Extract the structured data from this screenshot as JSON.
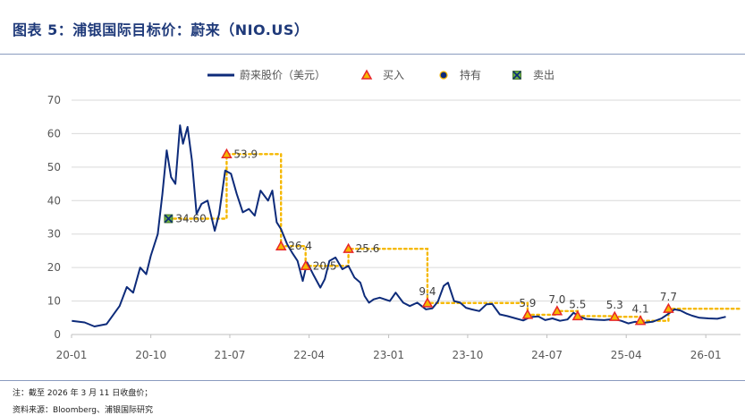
{
  "header": {
    "title": "图表 5：浦银国际目标价：蔚来（NIO.US）"
  },
  "footer": {
    "note": "注：截至 2026 年 3 月 11 日收盘价；",
    "source": "资料来源：Bloomberg、浦银国际研究"
  },
  "colors": {
    "title": "#1f3a7a",
    "price_line": "#0d2b7a",
    "target_line": "#f5b800",
    "buy_marker": "#e8262a",
    "buy_marker_fill": "#f5b800",
    "hold_marker": "#0d2b7a",
    "sell_marker": "#6db33f"
  },
  "chart_data": {
    "type": "line",
    "legend_position": "top",
    "grid": true,
    "x_ticks": [
      "20-01",
      "20-10",
      "21-07",
      "22-04",
      "23-01",
      "23-10",
      "24-07",
      "25-04",
      "26-01"
    ],
    "x_tick_values": [
      "2020-01",
      "2020-10",
      "2021-07",
      "2022-04",
      "2023-01",
      "2023-10",
      "2024-07",
      "2025-04",
      "2026-01"
    ],
    "xlim": [
      "2020-01",
      "2026-05"
    ],
    "y_ticks": [
      0,
      10,
      20,
      30,
      40,
      50,
      60,
      70
    ],
    "ylim": [
      0,
      70
    ],
    "legend": [
      {
        "key": "price",
        "label": "蔚来股价（美元）"
      },
      {
        "key": "buy",
        "label": "买入"
      },
      {
        "key": "hold",
        "label": "持有"
      },
      {
        "key": "sell",
        "label": "卖出"
      }
    ],
    "series": [
      {
        "name": "蔚来股价（美元）",
        "points": [
          [
            "2020-01-02",
            4.1
          ],
          [
            "2020-02-15",
            3.6
          ],
          [
            "2020-03-20",
            2.4
          ],
          [
            "2020-05-01",
            3.1
          ],
          [
            "2020-06-15",
            8.5
          ],
          [
            "2020-07-10",
            14.2
          ],
          [
            "2020-08-01",
            12.5
          ],
          [
            "2020-08-25",
            20.0
          ],
          [
            "2020-09-15",
            18.0
          ],
          [
            "2020-10-01",
            23.5
          ],
          [
            "2020-10-25",
            30.0
          ],
          [
            "2020-11-10",
            42.0
          ],
          [
            "2020-11-25",
            55.0
          ],
          [
            "2020-12-10",
            47.0
          ],
          [
            "2020-12-25",
            45.0
          ],
          [
            "2021-01-10",
            62.5
          ],
          [
            "2021-01-20",
            57.0
          ],
          [
            "2021-02-05",
            62.0
          ],
          [
            "2021-02-20",
            52.0
          ],
          [
            "2021-03-08",
            36.0
          ],
          [
            "2021-03-25",
            39.0
          ],
          [
            "2021-04-15",
            40.0
          ],
          [
            "2021-05-10",
            31.0
          ],
          [
            "2021-05-25",
            36.0
          ],
          [
            "2021-06-15",
            49.0
          ],
          [
            "2021-07-05",
            48.0
          ],
          [
            "2021-07-25",
            42.0
          ],
          [
            "2021-08-15",
            36.5
          ],
          [
            "2021-09-05",
            37.5
          ],
          [
            "2021-09-25",
            35.5
          ],
          [
            "2021-10-15",
            43.0
          ],
          [
            "2021-11-10",
            40.0
          ],
          [
            "2021-11-25",
            43.0
          ],
          [
            "2021-12-10",
            33.5
          ],
          [
            "2021-12-25",
            31.5
          ],
          [
            "2022-01-15",
            27.0
          ],
          [
            "2022-02-01",
            24.5
          ],
          [
            "2022-02-20",
            22.0
          ],
          [
            "2022-03-10",
            16.0
          ],
          [
            "2022-03-25",
            21.5
          ],
          [
            "2022-04-15",
            18.0
          ],
          [
            "2022-05-10",
            14.0
          ],
          [
            "2022-05-25",
            16.5
          ],
          [
            "2022-06-10",
            22.0
          ],
          [
            "2022-07-01",
            23.0
          ],
          [
            "2022-07-25",
            19.5
          ],
          [
            "2022-08-15",
            20.5
          ],
          [
            "2022-09-05",
            17.0
          ],
          [
            "2022-09-25",
            15.5
          ],
          [
            "2022-10-10",
            11.5
          ],
          [
            "2022-10-25",
            9.5
          ],
          [
            "2022-11-10",
            10.5
          ],
          [
            "2022-12-01",
            11.0
          ],
          [
            "2023-01-05",
            10.0
          ],
          [
            "2023-01-25",
            12.5
          ],
          [
            "2023-02-20",
            9.5
          ],
          [
            "2023-03-15",
            8.5
          ],
          [
            "2023-04-10",
            9.5
          ],
          [
            "2023-05-10",
            7.5
          ],
          [
            "2023-06-01",
            7.8
          ],
          [
            "2023-06-20",
            9.8
          ],
          [
            "2023-07-10",
            14.5
          ],
          [
            "2023-07-25",
            15.5
          ],
          [
            "2023-08-15",
            10.0
          ],
          [
            "2023-09-05",
            9.5
          ],
          [
            "2023-09-25",
            8.0
          ],
          [
            "2023-10-15",
            7.5
          ],
          [
            "2023-11-10",
            7.0
          ],
          [
            "2023-12-05",
            9.0
          ],
          [
            "2023-12-25",
            9.1
          ],
          [
            "2024-01-20",
            6.0
          ],
          [
            "2024-02-15",
            5.5
          ],
          [
            "2024-03-15",
            4.8
          ],
          [
            "2024-04-10",
            4.2
          ],
          [
            "2024-05-05",
            5.2
          ],
          [
            "2024-06-01",
            5.4
          ],
          [
            "2024-06-25",
            4.3
          ],
          [
            "2024-07-20",
            4.8
          ],
          [
            "2024-08-15",
            4.1
          ],
          [
            "2024-09-10",
            4.5
          ],
          [
            "2024-10-01",
            6.5
          ],
          [
            "2024-10-20",
            5.4
          ],
          [
            "2024-11-15",
            4.6
          ],
          [
            "2024-12-20",
            4.4
          ],
          [
            "2025-01-15",
            4.3
          ],
          [
            "2025-02-15",
            4.6
          ],
          [
            "2025-03-15",
            4.1
          ],
          [
            "2025-04-08",
            3.3
          ],
          [
            "2025-05-01",
            3.8
          ],
          [
            "2025-06-01",
            3.5
          ],
          [
            "2025-07-01",
            3.8
          ],
          [
            "2025-08-01",
            4.8
          ],
          [
            "2025-08-25",
            6.2
          ],
          [
            "2025-09-15",
            7.5
          ],
          [
            "2025-10-05",
            7.2
          ],
          [
            "2025-10-25",
            6.3
          ],
          [
            "2025-11-15",
            5.6
          ],
          [
            "2025-12-10",
            5.0
          ],
          [
            "2026-01-10",
            4.8
          ],
          [
            "2026-02-10",
            4.7
          ],
          [
            "2026-03-11",
            5.3
          ]
        ]
      }
    ],
    "target_price_path": [
      [
        "2020-12-01",
        34.6
      ],
      [
        "2021-06-20",
        34.6
      ],
      [
        "2021-06-20",
        53.9
      ],
      [
        "2021-12-25",
        53.9
      ],
      [
        "2021-12-25",
        26.4
      ],
      [
        "2022-03-20",
        26.4
      ],
      [
        "2022-03-20",
        20.5
      ],
      [
        "2022-08-15",
        20.5
      ],
      [
        "2022-08-15",
        25.6
      ],
      [
        "2023-05-15",
        25.6
      ],
      [
        "2023-05-15",
        9.4
      ],
      [
        "2024-04-25",
        9.4
      ],
      [
        "2024-04-25",
        5.9
      ],
      [
        "2024-08-05",
        5.9
      ],
      [
        "2024-08-05",
        7.0
      ],
      [
        "2024-10-15",
        7.0
      ],
      [
        "2024-10-15",
        5.5
      ],
      [
        "2025-02-20",
        5.5
      ],
      [
        "2025-02-20",
        5.3
      ],
      [
        "2025-05-20",
        5.3
      ],
      [
        "2025-05-20",
        4.1
      ],
      [
        "2025-08-25",
        4.1
      ],
      [
        "2025-08-25",
        7.7
      ],
      [
        "2026-05-01",
        7.7
      ]
    ],
    "ratings": [
      {
        "rating": "sell",
        "date": "2020-12-01",
        "price": 34.6,
        "label": "34.60"
      },
      {
        "rating": "buy",
        "date": "2021-06-20",
        "price": 53.9,
        "label": "53.9"
      },
      {
        "rating": "buy",
        "date": "2021-12-25",
        "price": 26.4,
        "label": "26.4"
      },
      {
        "rating": "buy",
        "date": "2022-03-20",
        "price": 20.5,
        "label": "20.5"
      },
      {
        "rating": "buy",
        "date": "2022-08-15",
        "price": 25.6,
        "label": "25.6"
      },
      {
        "rating": "buy",
        "date": "2023-05-15",
        "price": 9.4,
        "label": "9.4"
      },
      {
        "rating": "buy",
        "date": "2024-04-25",
        "price": 5.9,
        "label": "5.9"
      },
      {
        "rating": "buy",
        "date": "2024-08-05",
        "price": 7.0,
        "label": "7.0"
      },
      {
        "rating": "buy",
        "date": "2024-10-15",
        "price": 5.5,
        "label": "5.5"
      },
      {
        "rating": "buy",
        "date": "2025-02-20",
        "price": 5.3,
        "label": "5.3"
      },
      {
        "rating": "buy",
        "date": "2025-05-20",
        "price": 4.1,
        "label": "4.1"
      },
      {
        "rating": "buy",
        "date": "2025-08-25",
        "price": 7.7,
        "label": "7.7"
      }
    ]
  }
}
